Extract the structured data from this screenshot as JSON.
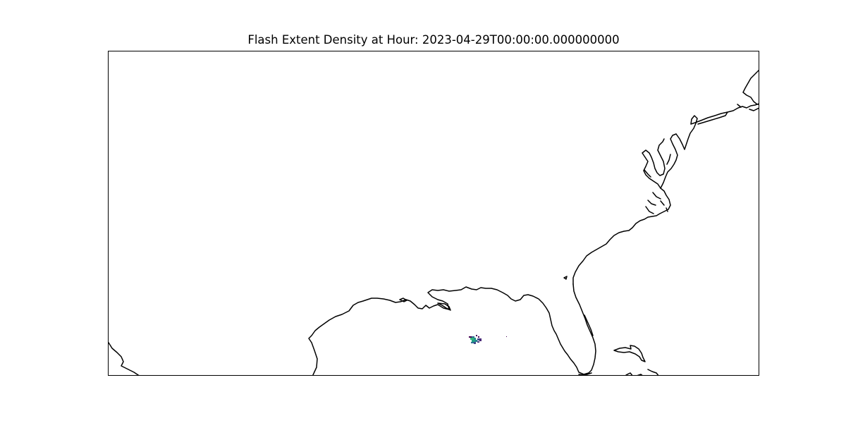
{
  "figure": {
    "title": "Flash Extent Density at Hour: 2023-04-29T00:00:00.000000000"
  },
  "map": {
    "layers": [
      "coastlines",
      "flash-extent-density"
    ],
    "colormap": "viridis",
    "colors": {
      "coastline": "#000000",
      "background": "#ffffff",
      "density_low": "#440154",
      "density_mid": "#21918c",
      "density_high": "#fde725"
    }
  }
}
